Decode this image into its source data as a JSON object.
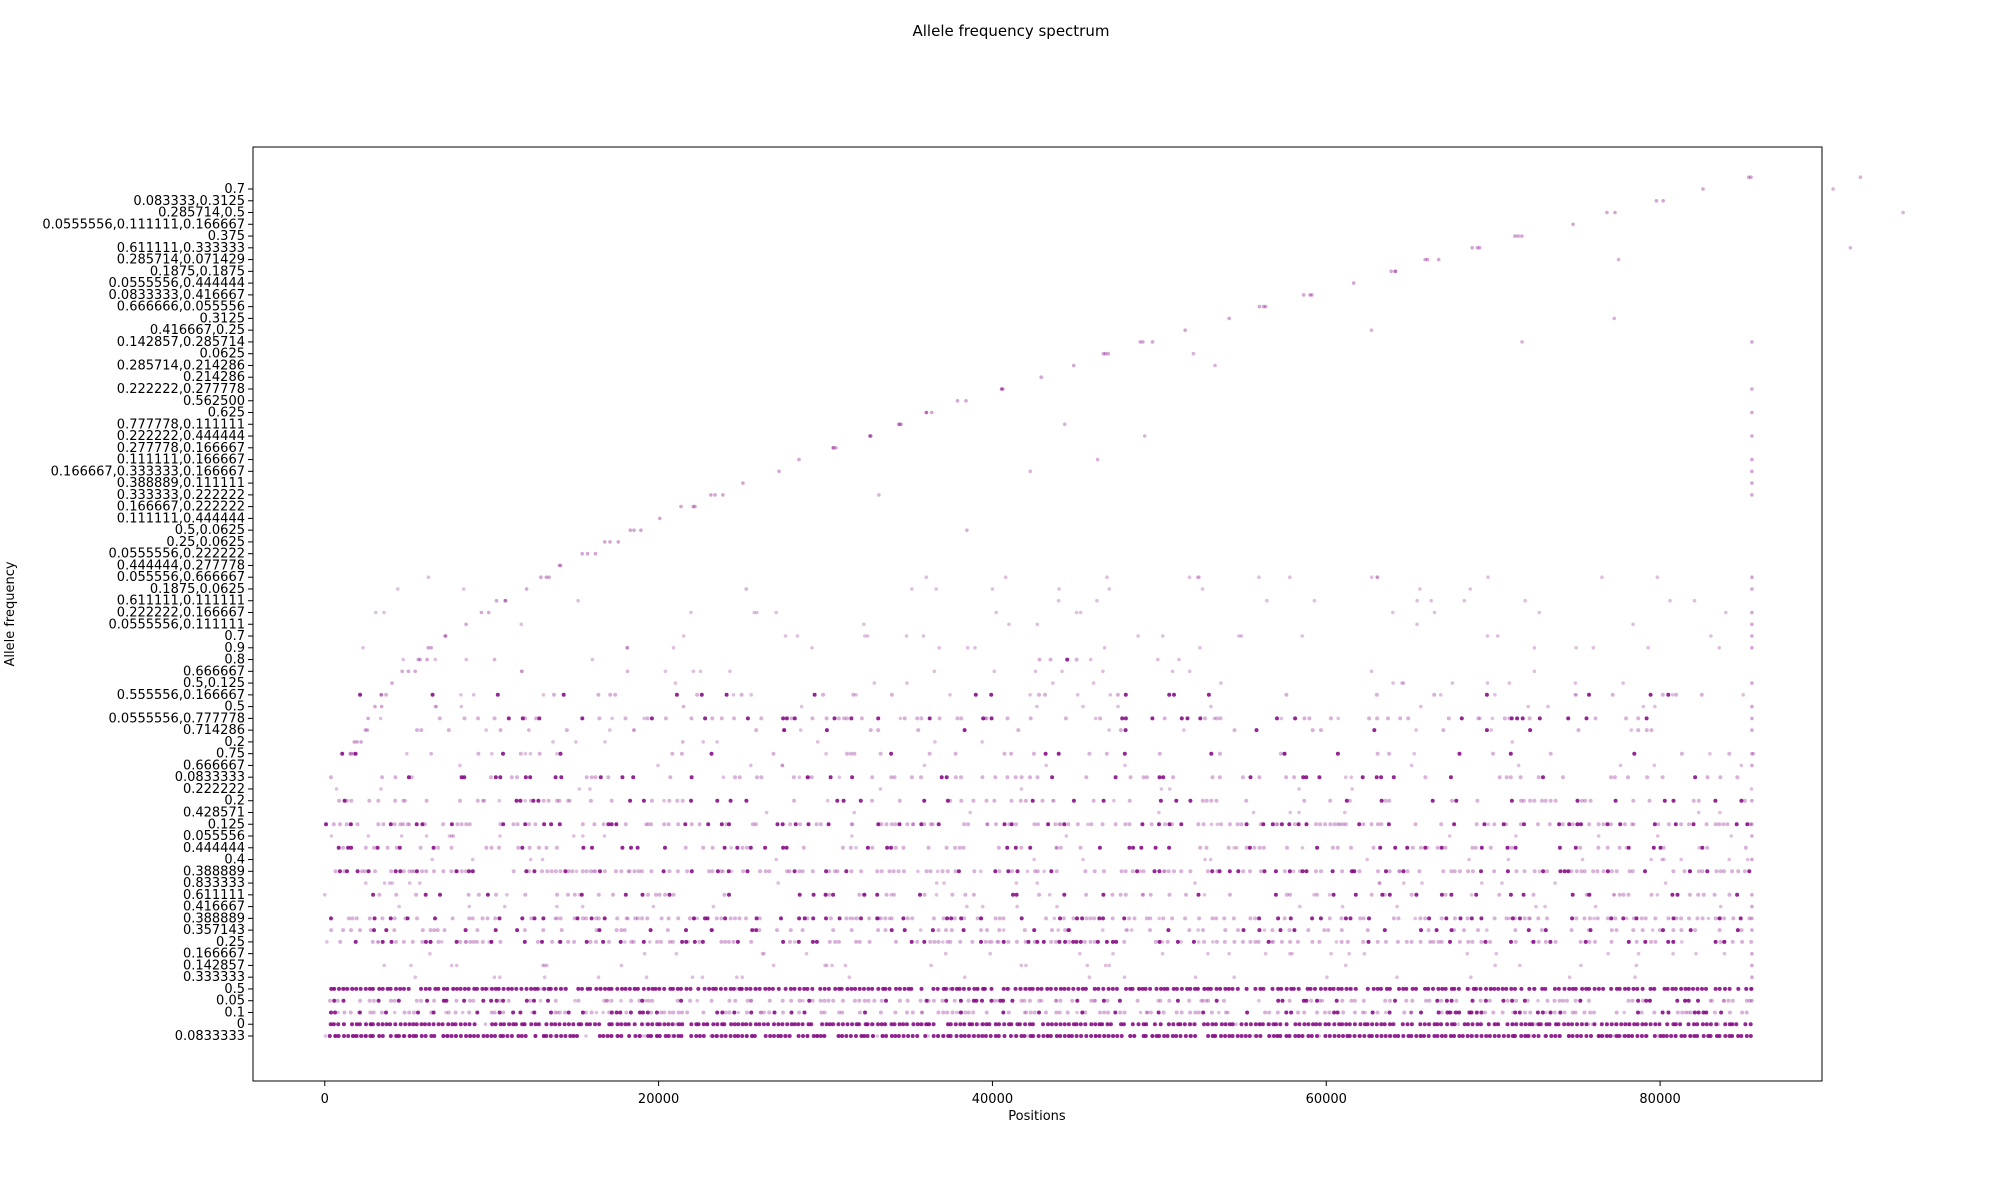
{
  "chart_data": {
    "type": "scatter",
    "title": "Allele frequency spectrum",
    "xlabel": "Positions",
    "ylabel": "Allele frequency",
    "xlim": [
      -4300,
      89700
    ],
    "x_ticks": [
      0,
      20000,
      40000,
      60000,
      80000
    ],
    "y_axis_kind": "categorical (string-valued frequencies)",
    "y_tick_labels": [
      "0.0833333",
      "0",
      "0.1",
      "0.05",
      "0.5",
      "0.333333",
      "0.142857",
      "0.166667",
      "0.25",
      "0.357143",
      "0.388889",
      "0.416667",
      "0.611111",
      "0.833333",
      "0.388889",
      "0.4",
      "0.444444",
      "0.055556",
      "0.125",
      "0.428571",
      "0.2",
      "0.222222",
      "0.0833333",
      "0.666667",
      "0.75",
      "0.2",
      "0.714286",
      "0.0555556,0.777778",
      "0.5",
      "0.555556,0.166667",
      "0.5,0.125",
      "0.666667",
      "0.8",
      "0.9",
      "0.7",
      "0.0555556,0.111111",
      "0.222222,0.166667",
      "0.611111,0.111111",
      "0.1875,0.0625",
      "0.055556,0.666667",
      "0.444444,0.277778",
      "0.0555556,0.222222",
      "0.25,0.0625",
      "0.5,0.0625",
      "0.111111,0.444444",
      "0.166667,0.222222",
      "0.333333,0.222222",
      "0.388889,0.111111",
      "0.166667,0.333333,0.166667",
      "0.111111,0.166667",
      "0.277778,0.166667",
      "0.222222,0.444444",
      "0.777778,0.111111",
      "0.625",
      "0.562500",
      "0.222222,0.277778",
      "0.214286",
      "0.285714,0.214286",
      "0.0625",
      "0.142857,0.285714",
      "0.416667,0.25",
      "0.3125",
      "0.666666,0.055556",
      "0.0833333,0.416667",
      "0.0555556,0.444444",
      "0.1875,0.1875",
      "0.285714,0.071429",
      "0.611111,0.333333",
      "0.375",
      "0.0555556,0.111111,0.166667",
      "0.285714,0.5",
      "0.083333,0.3125",
      "0.7"
    ],
    "x_range_of_points": [
      0,
      85600
    ],
    "point_color": "#800080",
    "point_style": "small semi-transparent purple dots",
    "dense_bands": [
      {
        "level_index": 0,
        "x_from": 0,
        "x_to": 85600,
        "density": "solid"
      },
      {
        "level_index": 1,
        "x_from": 0,
        "x_to": 85600,
        "density": "solid"
      },
      {
        "level_index": 2,
        "x_from": 0,
        "x_to": 85600,
        "density": "heavy"
      },
      {
        "level_index": 3,
        "x_from": 0,
        "x_to": 85600,
        "density": "heavy"
      },
      {
        "level_index": 4,
        "x_from": 0,
        "x_to": 85600,
        "density": "solid"
      },
      {
        "level_index": 8,
        "x_from": 0,
        "x_to": 85600,
        "density": "heavy"
      },
      {
        "level_index": 9,
        "x_from": 0,
        "x_to": 85600,
        "density": "medium"
      },
      {
        "level_index": 10,
        "x_from": 0,
        "x_to": 85600,
        "density": "heavy"
      },
      {
        "level_index": 12,
        "x_from": 0,
        "x_to": 85600,
        "density": "medium"
      },
      {
        "level_index": 14,
        "x_from": 0,
        "x_to": 85600,
        "density": "heavy"
      },
      {
        "level_index": 16,
        "x_from": 0,
        "x_to": 85600,
        "density": "medium"
      },
      {
        "level_index": 18,
        "x_from": 0,
        "x_to": 85600,
        "density": "heavy"
      },
      {
        "level_index": 20,
        "x_from": 0,
        "x_to": 85600,
        "density": "medium"
      },
      {
        "level_index": 22,
        "x_from": 0,
        "x_to": 85600,
        "density": "medium"
      },
      {
        "level_index": 24,
        "x_from": 500,
        "x_to": 85600,
        "density": "light"
      },
      {
        "level_index": 26,
        "x_from": 5000,
        "x_to": 81000,
        "density": "light"
      },
      {
        "level_index": 27,
        "x_from": 6000,
        "x_to": 81000,
        "density": "medium"
      },
      {
        "level_index": 29,
        "x_from": 2000,
        "x_to": 85600,
        "density": "light"
      },
      {
        "level_index": 32,
        "x_from": 42000,
        "x_to": 46000,
        "density": "medium"
      }
    ],
    "diagonal_trend": {
      "x_from": 1500,
      "x_to": 85200,
      "level_from": 24,
      "level_to": 73
    },
    "grid": false,
    "legend": "none"
  }
}
